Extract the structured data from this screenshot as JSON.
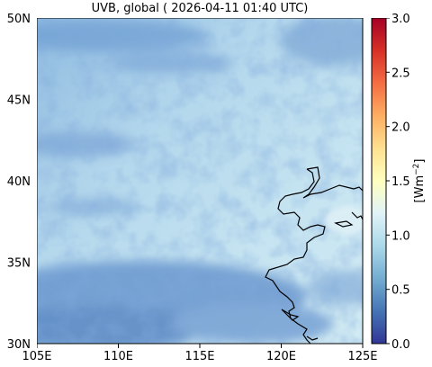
{
  "title": "UVB, global ( 2026-04-11 01:40 UTC)",
  "lon_labels": [
    "105E",
    "110E",
    "115E",
    "120E",
    "125E"
  ],
  "lat_labels": [
    "30N",
    "35N",
    "40N",
    "45N",
    "50N"
  ],
  "colorbar": {
    "label": "[Wm",
    "label_sup": "−2",
    "label_close": "]",
    "ticks": [
      "0.0",
      "0.5",
      "1.0",
      "1.5",
      "2.0",
      "2.5",
      "3.0"
    ],
    "range": [
      0,
      3
    ],
    "colormap": [
      "#313695",
      "#4575b4",
      "#74add1",
      "#abd9e9",
      "#e0f3f8",
      "#ffffbf",
      "#fee090",
      "#fdae61",
      "#f46d43",
      "#d73027",
      "#a50026"
    ]
  },
  "map": {
    "lon_range": [
      105,
      125
    ],
    "lat_range": [
      30,
      50
    ],
    "base_color": "#b9dcee"
  }
}
